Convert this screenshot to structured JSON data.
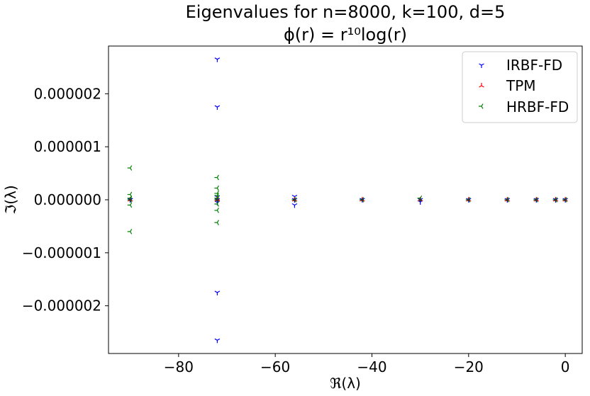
{
  "chart_data": {
    "type": "scatter",
    "title": "Eigenvalues for n=8000, k=100, d=5",
    "subtitle": "ϕ(r) = r¹⁰log(r)",
    "xlabel": "ℜ(λ)",
    "ylabel": "ℑ(λ)",
    "xlim": [
      -94.5,
      3.5
    ],
    "ylim": [
      -2.9e-06,
      2.9e-06
    ],
    "xticks": [
      -80,
      -60,
      -40,
      -20,
      0
    ],
    "xtick_labels": [
      "−80",
      "−60",
      "−40",
      "−20",
      "0"
    ],
    "yticks": [
      -2e-06,
      -1e-06,
      0,
      1e-06,
      2e-06
    ],
    "ytick_labels": [
      "−0.000002",
      "−0.000001",
      "0.000000",
      "0.000001",
      "0.000002"
    ],
    "grid": false,
    "legend_position": "top-right",
    "series": [
      {
        "name": "IRBF-FD",
        "color": "#0000ff",
        "marker": "tri_down",
        "x": [
          -72,
          -72,
          -72,
          -72,
          -72,
          -72,
          -72,
          -56,
          -56,
          -56,
          -90,
          -90,
          -42,
          -30,
          -30,
          -20,
          -12,
          -6,
          -2,
          0
        ],
        "y": [
          2.65e-06,
          1.75e-06,
          -1.75e-06,
          -2.65e-06,
          5e-08,
          -5e-08,
          0,
          6e-08,
          -1e-07,
          0,
          0,
          0,
          0,
          0,
          -4e-08,
          0,
          0,
          0,
          0,
          0
        ]
      },
      {
        "name": "TPM",
        "color": "#ff0000",
        "marker": "tri_up",
        "x": [
          -90,
          -72,
          -72,
          -56,
          -42,
          -30,
          -20,
          -12,
          -6,
          -2,
          0
        ],
        "y": [
          0,
          0,
          2e-08,
          0,
          0,
          0,
          0,
          0,
          0,
          0,
          0
        ]
      },
      {
        "name": "HRBF-FD",
        "color": "#008000",
        "marker": "tri_left",
        "x": [
          -90,
          -90,
          -90,
          -90,
          -90,
          -90,
          -72,
          -72,
          -72,
          -72,
          -72,
          -72,
          -72,
          -72,
          -72,
          -56,
          -42,
          -30,
          -20,
          -12,
          -6,
          -2,
          0
        ],
        "y": [
          6e-07,
          -6e-07,
          1e-07,
          -1e-07,
          3e-08,
          0,
          4.2e-07,
          -4.3e-07,
          2.2e-07,
          -2e-07,
          1.2e-07,
          8e-08,
          -8e-08,
          3e-08,
          0,
          0,
          0,
          3e-08,
          0,
          0,
          0,
          0,
          0
        ]
      },
      {
        "name": "",
        "color": "#333333",
        "marker": "dot",
        "x": [
          -90,
          -72,
          -56,
          -42,
          -30,
          -20,
          -12,
          -6,
          -2,
          0
        ],
        "y": [
          0,
          0,
          0,
          0,
          0,
          0,
          0,
          0,
          0,
          0
        ]
      }
    ]
  }
}
